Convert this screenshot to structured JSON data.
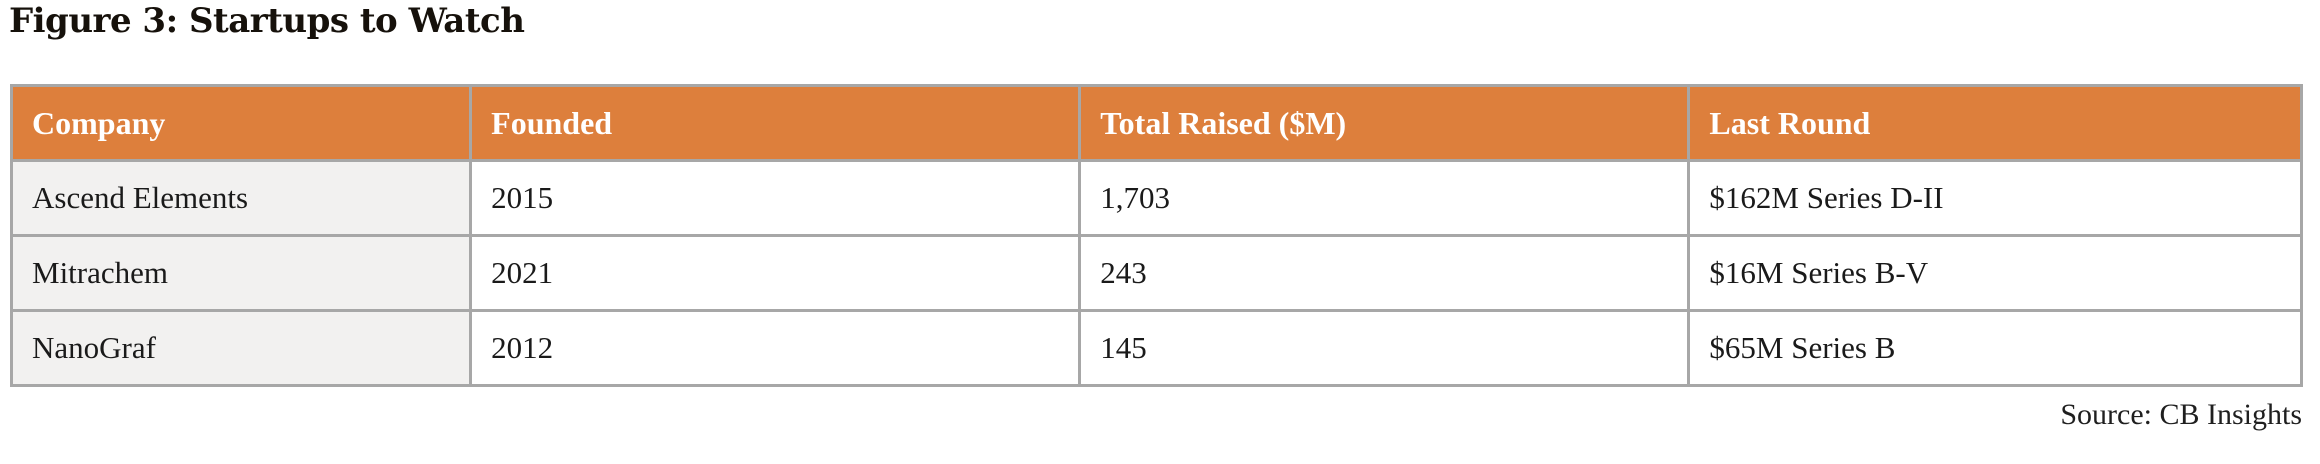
{
  "title": "Figure 3: Startups to Watch",
  "table": {
    "columns": [
      "Company",
      "Founded",
      "Total Raised ($M)",
      "Last Round"
    ],
    "rows": [
      [
        "Ascend Elements",
        "2015",
        "1,703",
        "$162M Series D-II"
      ],
      [
        "Mitrachem",
        "2021",
        "243",
        "$16M Series B-V"
      ],
      [
        "NanoGraf",
        "2012",
        "145",
        "$65M Series B"
      ]
    ]
  },
  "source": "Source: CB Insights",
  "colors": {
    "header_bg": "#DD7F3C",
    "header_text": "#FFFFFF",
    "first_column_bg": "#F2F1F0",
    "border": "#A7A7A7",
    "body_text": "#1A1A1A",
    "title_text": "#16110B"
  }
}
